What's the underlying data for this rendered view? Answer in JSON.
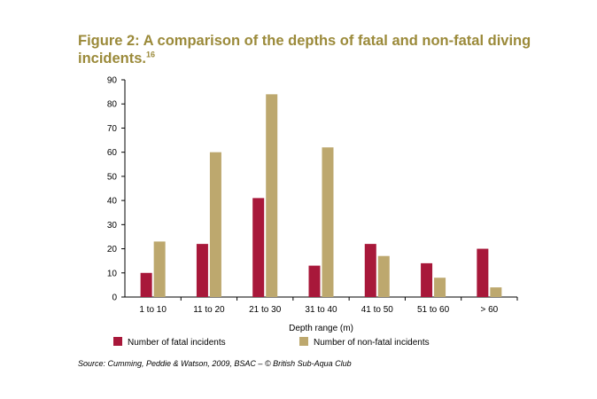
{
  "title": {
    "text": "Figure 2: A comparison of the depths of fatal and non-fatal diving incidents.",
    "superscript": "16"
  },
  "source": "Source: Cumming, Peddie & Watson, 2009, BSAC – © British Sub-Aqua Club",
  "colors": {
    "fatal": "#a8183a",
    "nonfatal": "#bda86e",
    "title": "#9b8a3a"
  },
  "chart_data": {
    "type": "bar",
    "title": "Figure 2: A comparison of the depths of fatal and non-fatal diving incidents.",
    "xlabel": "Depth range (m)",
    "ylabel": "",
    "ylim": [
      0,
      90
    ],
    "yticks": [
      0,
      10,
      20,
      30,
      40,
      50,
      60,
      70,
      80,
      90
    ],
    "categories": [
      "1 to 10",
      "11 to 20",
      "21 to 30",
      "31 to 40",
      "41 to 50",
      "51 to 60",
      "> 60"
    ],
    "series": [
      {
        "name": "Number of fatal incidents",
        "color": "#a8183a",
        "values": [
          10,
          22,
          41,
          13,
          22,
          14,
          20
        ]
      },
      {
        "name": "Number of non-fatal incidents",
        "color": "#bda86e",
        "values": [
          23,
          60,
          84,
          62,
          17,
          8,
          4
        ]
      }
    ],
    "legend": "bottom",
    "grid": false
  }
}
